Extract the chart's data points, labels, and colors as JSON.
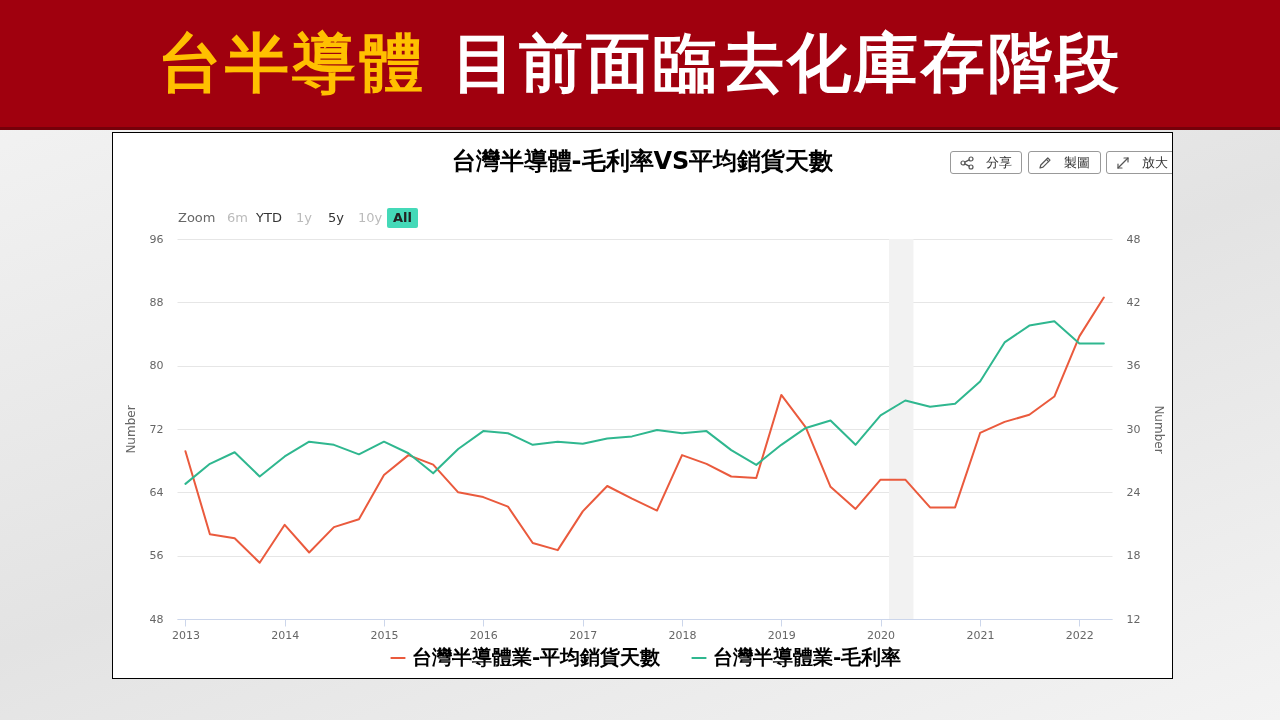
{
  "chart_data": {
    "type": "line",
    "title": "台半導體 目前面臨去化庫存階段",
    "subtitle": "台灣半導體-毛利率VS平均銷貨天數",
    "annotations": [
      "Zoom",
      "6m",
      "YTD",
      "1y",
      "5y",
      "10y",
      "All",
      "分享",
      "製圖",
      "放大"
    ],
    "x": [
      "2013-01",
      "2013-04",
      "2013-07",
      "2013-10",
      "2014-01",
      "2014-04",
      "2014-07",
      "2014-10",
      "2015-01",
      "2015-04",
      "2015-07",
      "2015-10",
      "2016-01",
      "2016-04",
      "2016-07",
      "2016-10",
      "2017-01",
      "2017-04",
      "2017-07",
      "2017-10",
      "2018-01",
      "2018-04",
      "2018-07",
      "2018-10",
      "2019-01",
      "2019-04",
      "2019-07",
      "2019-10",
      "2020-01",
      "2020-04",
      "2020-07",
      "2020-10",
      "2021-01",
      "2021-04",
      "2021-07",
      "2021-10",
      "2022-01",
      "2022-04"
    ],
    "series": [
      {
        "name": "台灣半導體業-平均銷貨天數",
        "color": "#ea5a3d",
        "axis": "y",
        "values": [
          69.2,
          58.7,
          58.2,
          55.1,
          59.9,
          56.4,
          59.6,
          60.6,
          66.2,
          68.7,
          67.5,
          64.0,
          63.4,
          62.2,
          57.6,
          56.7,
          61.6,
          64.8,
          63.2,
          61.7,
          68.7,
          67.6,
          66.0,
          65.8,
          76.3,
          72.2,
          64.7,
          61.9,
          65.6,
          65.6,
          62.1,
          62.1,
          71.5,
          72.9,
          73.8,
          76.1,
          83.7,
          88.6
        ]
      },
      {
        "name": "台灣半導體業-毛利率",
        "color": "#2fb78f",
        "axis": "y2",
        "values": [
          24.8,
          26.7,
          27.8,
          25.5,
          27.4,
          28.8,
          28.5,
          27.6,
          28.8,
          27.7,
          25.8,
          28.1,
          29.8,
          29.6,
          28.5,
          28.8,
          28.6,
          29.1,
          29.3,
          29.9,
          29.6,
          29.8,
          28.0,
          26.6,
          28.5,
          30.1,
          30.8,
          28.5,
          31.3,
          32.7,
          32.1,
          32.4,
          34.5,
          38.2,
          39.8,
          40.2,
          38.1,
          38.1
        ]
      }
    ],
    "ylabel": "Number",
    "y2label": "Number",
    "xlim": [
      "2012-12",
      "2022-05"
    ],
    "xticks": [
      "2013",
      "2014",
      "2015",
      "2016",
      "2017",
      "2018",
      "2019",
      "2020",
      "2021",
      "2022"
    ],
    "ylim": [
      48,
      96
    ],
    "yticks": [
      48,
      56,
      64,
      72,
      80,
      88,
      96
    ],
    "y2lim": [
      12,
      48
    ],
    "y2ticks": [
      12,
      18,
      24,
      30,
      36,
      42,
      48
    ],
    "bands": [
      {
        "axis": "x",
        "from": "2020-02",
        "to": "2020-05",
        "color": "#f2f2f2"
      }
    ],
    "grid": "y",
    "legend": "bottom"
  }
}
